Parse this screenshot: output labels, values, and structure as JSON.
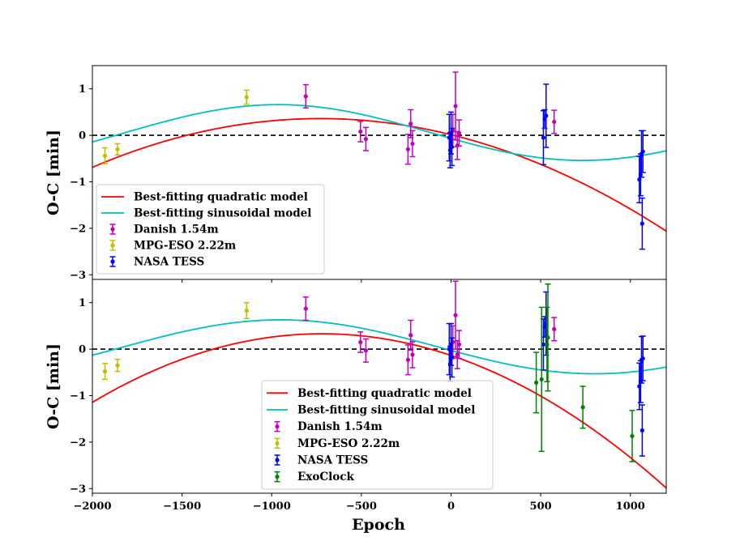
{
  "chart_data": {
    "type": "scatter",
    "xlabel": "Epoch",
    "xlim": [
      -2000,
      1200
    ],
    "xticks": [
      -2000,
      -1500,
      -1000,
      -500,
      0,
      500,
      1000
    ],
    "xtick_labels": [
      "−2000",
      "−1500",
      "−1000",
      "−500",
      "0",
      "500",
      "1000"
    ],
    "series_colors": {
      "quad": "#ff0000",
      "sine": "#00bfbf",
      "danish": "#bf00bf",
      "mpg": "#bfbf00",
      "tess": "#0000ff",
      "exo": "#008000"
    },
    "panels": [
      {
        "id": "top",
        "ylabel": "O-C [min]",
        "ylim": [
          -3.1,
          1.5
        ],
        "yticks": [
          1,
          0,
          -1,
          -2,
          -3
        ],
        "ytick_labels": [
          "1",
          "0",
          "−1",
          "−2",
          "−3"
        ],
        "reference_line": 0,
        "legend": {
          "position": "lower-left",
          "entries": [
            {
              "key": "quad",
              "kind": "line",
              "label": "Best-fitting quadratic model"
            },
            {
              "key": "sine",
              "kind": "line",
              "label": "Best-fitting sinusoidal model"
            },
            {
              "key": "danish",
              "kind": "errorbar",
              "label": "Danish 1.54m"
            },
            {
              "key": "mpg",
              "kind": "errorbar",
              "label": "MPG-ESO 2.22m"
            },
            {
              "key": "tess",
              "kind": "errorbar",
              "label": "NASA TESS"
            }
          ]
        },
        "models": {
          "quad": {
            "vertex_x": -730,
            "vertex_y": 0.36,
            "a": -6.5e-07
          },
          "sine": {
            "offset": 0.06,
            "amplitude": 0.6,
            "period": 3400,
            "peak_x": -965
          }
        },
        "datasets": [
          {
            "key": "mpg",
            "points": [
              {
                "x": -1930,
                "y": -0.44,
                "err": 0.17
              },
              {
                "x": -1860,
                "y": -0.3,
                "err": 0.12
              },
              {
                "x": -1140,
                "y": 0.82,
                "err": 0.15
              }
            ]
          },
          {
            "key": "danish",
            "points": [
              {
                "x": -810,
                "y": 0.84,
                "err": 0.25
              },
              {
                "x": -505,
                "y": 0.08,
                "err": 0.22
              },
              {
                "x": -475,
                "y": -0.08,
                "err": 0.25
              },
              {
                "x": -240,
                "y": -0.3,
                "err": 0.32
              },
              {
                "x": -225,
                "y": 0.25,
                "err": 0.3
              },
              {
                "x": -215,
                "y": -0.18,
                "err": 0.28
              },
              {
                "x": 10,
                "y": 0.1,
                "err": 0.35
              },
              {
                "x": 25,
                "y": 0.63,
                "err": 0.73
              },
              {
                "x": 35,
                "y": -0.22,
                "err": 0.3
              },
              {
                "x": 45,
                "y": 0.05,
                "err": 0.28
              },
              {
                "x": 575,
                "y": 0.29,
                "err": 0.25
              }
            ]
          },
          {
            "key": "tess",
            "points": [
              {
                "x": -10,
                "y": -0.05,
                "err": 0.5
              },
              {
                "x": -5,
                "y": -0.32,
                "err": 0.38
              },
              {
                "x": 0,
                "y": 0.05,
                "err": 0.45
              },
              {
                "x": 5,
                "y": -0.25,
                "err": 0.4
              },
              {
                "x": 515,
                "y": -0.05,
                "err": 0.58
              },
              {
                "x": 522,
                "y": 0.35,
                "err": 0.2
              },
              {
                "x": 530,
                "y": 0.42,
                "err": 0.68
              },
              {
                "x": 1050,
                "y": -0.95,
                "err": 0.5
              },
              {
                "x": 1057,
                "y": -0.85,
                "err": 0.45
              },
              {
                "x": 1062,
                "y": -0.4,
                "err": 0.5
              },
              {
                "x": 1066,
                "y": -1.9,
                "err": 0.55
              },
              {
                "x": 1070,
                "y": -0.35,
                "err": 0.45
              }
            ]
          }
        ]
      },
      {
        "id": "bottom",
        "ylabel": "O-C [min]",
        "ylim": [
          -3.1,
          1.5
        ],
        "yticks": [
          1,
          0,
          -1,
          -2,
          -3
        ],
        "ytick_labels": [
          "1",
          "0",
          "−1",
          "−2",
          "−3"
        ],
        "reference_line": 0,
        "legend": {
          "position": "lower-center",
          "entries": [
            {
              "key": "quad",
              "kind": "line",
              "label": "Best-fitting quadratic model"
            },
            {
              "key": "sine",
              "kind": "line",
              "label": "Best-fitting sinusoidal model"
            },
            {
              "key": "danish",
              "kind": "errorbar",
              "label": "Danish 1.54m"
            },
            {
              "key": "mpg",
              "kind": "errorbar",
              "label": "MPG-ESO 2.22m"
            },
            {
              "key": "tess",
              "kind": "errorbar",
              "label": "NASA TESS"
            },
            {
              "key": "exo",
              "kind": "errorbar",
              "label": "ExoClock"
            }
          ]
        },
        "models": {
          "quad": {
            "vertex_x": -720,
            "vertex_y": 0.33,
            "a": -9e-07
          },
          "sine": {
            "offset": 0.05,
            "amplitude": 0.58,
            "period": 3500,
            "peak_x": -950
          }
        },
        "datasets": [
          {
            "key": "mpg",
            "points": [
              {
                "x": -1930,
                "y": -0.48,
                "err": 0.17
              },
              {
                "x": -1860,
                "y": -0.35,
                "err": 0.13
              },
              {
                "x": -1140,
                "y": 0.83,
                "err": 0.17
              }
            ]
          },
          {
            "key": "danish",
            "points": [
              {
                "x": -810,
                "y": 0.87,
                "err": 0.25
              },
              {
                "x": -505,
                "y": 0.15,
                "err": 0.22
              },
              {
                "x": -475,
                "y": -0.03,
                "err": 0.25
              },
              {
                "x": -240,
                "y": -0.23,
                "err": 0.32
              },
              {
                "x": -225,
                "y": 0.3,
                "err": 0.32
              },
              {
                "x": -215,
                "y": -0.12,
                "err": 0.28
              },
              {
                "x": 10,
                "y": 0.15,
                "err": 0.35
              },
              {
                "x": 25,
                "y": 0.73,
                "err": 0.73
              },
              {
                "x": 35,
                "y": -0.12,
                "err": 0.3
              },
              {
                "x": 45,
                "y": 0.1,
                "err": 0.3
              },
              {
                "x": 575,
                "y": 0.43,
                "err": 0.25
              }
            ]
          },
          {
            "key": "tess",
            "points": [
              {
                "x": -10,
                "y": 0.0,
                "err": 0.55
              },
              {
                "x": -5,
                "y": -0.32,
                "err": 0.38
              },
              {
                "x": 0,
                "y": 0.1,
                "err": 0.45
              },
              {
                "x": 5,
                "y": -0.18,
                "err": 0.42
              },
              {
                "x": 515,
                "y": 0.1,
                "err": 0.55
              },
              {
                "x": 522,
                "y": 0.48,
                "err": 0.22
              },
              {
                "x": 530,
                "y": 0.55,
                "err": 0.68
              },
              {
                "x": 1050,
                "y": -0.8,
                "err": 0.5
              },
              {
                "x": 1057,
                "y": -0.7,
                "err": 0.45
              },
              {
                "x": 1062,
                "y": -0.23,
                "err": 0.5
              },
              {
                "x": 1066,
                "y": -1.75,
                "err": 0.55
              },
              {
                "x": 1070,
                "y": -0.2,
                "err": 0.48
              }
            ]
          },
          {
            "key": "exo",
            "points": [
              {
                "x": 475,
                "y": -0.72,
                "err": 0.65
              },
              {
                "x": 505,
                "y": -0.65,
                "err": 1.55
              },
              {
                "x": 535,
                "y": 0.1,
                "err": 0.8
              },
              {
                "x": 540,
                "y": 0.25,
                "err": 1.15
              },
              {
                "x": 735,
                "y": -1.25,
                "err": 0.45
              },
              {
                "x": 1010,
                "y": -1.87,
                "err": 0.55
              }
            ]
          }
        ]
      }
    ]
  }
}
